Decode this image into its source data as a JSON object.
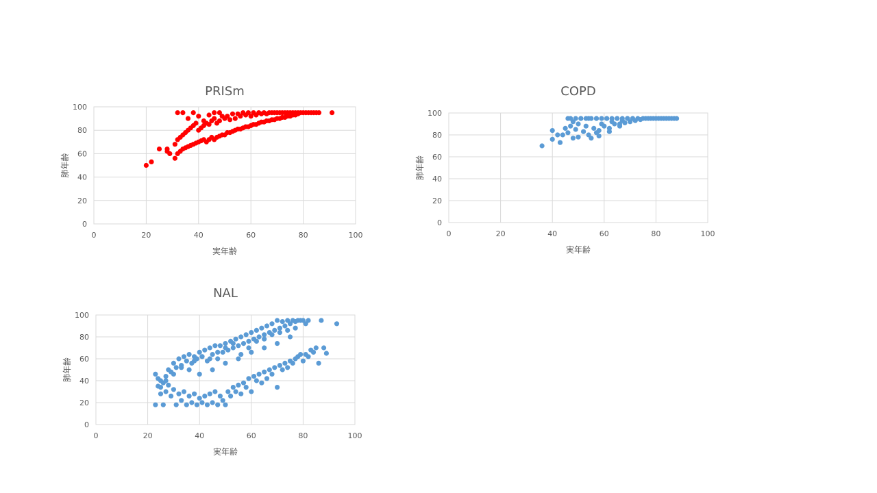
{
  "chart_data": [
    {
      "type": "scatter",
      "title": "PRISm",
      "xlabel": "実年齢",
      "ylabel": "肺年齢",
      "xlim": [
        0,
        100
      ],
      "ylim": [
        0,
        100
      ],
      "xticks": [
        0,
        20,
        40,
        60,
        80,
        100
      ],
      "yticks": [
        0,
        20,
        40,
        60,
        80,
        100
      ],
      "grid": true,
      "color": "#ff0000",
      "series": [
        {
          "x": [
            20,
            22,
            25,
            28,
            28,
            29,
            31,
            31,
            32,
            32,
            33,
            33,
            34,
            34,
            35,
            35,
            36,
            36,
            37,
            37,
            38,
            38,
            39,
            39,
            40,
            40,
            41,
            41,
            42,
            42,
            43,
            43,
            44,
            44,
            45,
            45,
            46,
            46,
            47,
            47,
            48,
            48,
            49,
            49,
            50,
            50,
            51,
            51,
            52,
            52,
            53,
            53,
            54,
            54,
            55,
            55,
            56,
            56,
            57,
            57,
            58,
            58,
            59,
            59,
            60,
            60,
            61,
            61,
            62,
            62,
            63,
            63,
            64,
            64,
            65,
            65,
            66,
            66,
            67,
            67,
            68,
            68,
            69,
            69,
            70,
            70,
            71,
            71,
            72,
            72,
            73,
            73,
            74,
            74,
            75,
            75,
            76,
            76,
            77,
            77,
            78,
            78,
            79,
            80,
            81,
            82,
            83,
            84,
            85,
            86,
            91,
            32,
            34,
            36,
            38,
            40,
            42,
            44,
            46,
            48
          ],
          "y": [
            50,
            53,
            64,
            62,
            64,
            60,
            56,
            68,
            60,
            72,
            62,
            74,
            64,
            76,
            65,
            78,
            66,
            80,
            67,
            82,
            68,
            84,
            69,
            86,
            70,
            80,
            71,
            82,
            72,
            84,
            70,
            86,
            72,
            85,
            74,
            88,
            72,
            90,
            74,
            86,
            75,
            88,
            76,
            92,
            76,
            90,
            78,
            92,
            78,
            89,
            79,
            94,
            80,
            90,
            81,
            94,
            81,
            92,
            82,
            95,
            83,
            93,
            83,
            95,
            84,
            92,
            85,
            95,
            85,
            93,
            86,
            95,
            87,
            94,
            87,
            95,
            88,
            94,
            88,
            95,
            89,
            95,
            89,
            95,
            90,
            95,
            90,
            95,
            91,
            95,
            91,
            95,
            92,
            95,
            92,
            95,
            93,
            95,
            93,
            95,
            94,
            95,
            95,
            95,
            95,
            95,
            95,
            95,
            95,
            95,
            95,
            95,
            95,
            90,
            95,
            92,
            88,
            93,
            95,
            95
          ]
        }
      ]
    },
    {
      "type": "scatter",
      "title": "COPD",
      "xlabel": "実年齢",
      "ylabel": "肺年齢",
      "xlim": [
        0,
        100
      ],
      "ylim": [
        0,
        100
      ],
      "xticks": [
        0,
        20,
        40,
        60,
        80,
        100
      ],
      "yticks": [
        0,
        20,
        40,
        60,
        80,
        100
      ],
      "grid": true,
      "color": "#5b9bd5",
      "series": [
        {
          "x": [
            36,
            40,
            40,
            42,
            43,
            44,
            45,
            46,
            46,
            47,
            48,
            48,
            49,
            50,
            50,
            51,
            52,
            53,
            54,
            54,
            55,
            56,
            57,
            57,
            58,
            59,
            60,
            61,
            62,
            63,
            64,
            65,
            66,
            67,
            68,
            69,
            70,
            71,
            72,
            73,
            74,
            75,
            76,
            77,
            78,
            79,
            80,
            81,
            82,
            83,
            84,
            85,
            86,
            87,
            88,
            47,
            49,
            51,
            53,
            55,
            57,
            59,
            61,
            63,
            65,
            67,
            69,
            71,
            58,
            62,
            66
          ],
          "y": [
            70,
            76,
            84,
            80,
            73,
            80,
            86,
            82,
            95,
            88,
            77,
            92,
            85,
            90,
            78,
            95,
            83,
            88,
            80,
            95,
            77,
            86,
            82,
            95,
            79,
            90,
            88,
            95,
            83,
            92,
            90,
            95,
            88,
            93,
            91,
            95,
            92,
            95,
            93,
            95,
            94,
            95,
            95,
            95,
            95,
            95,
            95,
            95,
            95,
            95,
            95,
            95,
            95,
            95,
            95,
            95,
            95,
            95,
            95,
            95,
            95,
            95,
            95,
            95,
            95,
            95,
            95,
            95,
            84,
            86,
            90
          ]
        }
      ]
    },
    {
      "type": "scatter",
      "title": "NAL",
      "xlabel": "実年齢",
      "ylabel": "肺年齢",
      "xlim": [
        0,
        100
      ],
      "ylim": [
        0,
        100
      ],
      "xticks": [
        0,
        20,
        40,
        60,
        80,
        100
      ],
      "yticks": [
        0,
        20,
        40,
        60,
        80,
        100
      ],
      "grid": true,
      "color": "#5b9bd5",
      "series": [
        {
          "x": [
            23,
            23,
            24,
            24,
            25,
            25,
            26,
            26,
            27,
            27,
            28,
            28,
            29,
            29,
            30,
            30,
            31,
            31,
            32,
            32,
            33,
            33,
            34,
            34,
            35,
            35,
            36,
            36,
            37,
            37,
            38,
            38,
            39,
            39,
            40,
            40,
            41,
            41,
            42,
            42,
            43,
            43,
            44,
            44,
            45,
            45,
            46,
            46,
            47,
            47,
            48,
            48,
            49,
            49,
            50,
            50,
            51,
            51,
            52,
            52,
            53,
            53,
            54,
            54,
            55,
            55,
            56,
            56,
            57,
            57,
            58,
            58,
            59,
            59,
            60,
            60,
            61,
            61,
            62,
            62,
            63,
            63,
            64,
            64,
            65,
            65,
            66,
            66,
            67,
            67,
            68,
            68,
            69,
            69,
            70,
            70,
            71,
            71,
            72,
            72,
            73,
            73,
            74,
            74,
            75,
            75,
            76,
            76,
            77,
            77,
            78,
            78,
            79,
            79,
            80,
            80,
            81,
            81,
            82,
            82,
            83,
            84,
            85,
            86,
            87,
            88,
            89,
            93,
            25,
            27,
            30,
            33,
            36,
            38,
            41,
            44,
            47,
            50,
            53,
            56,
            59,
            62,
            65,
            68,
            71,
            74,
            77,
            40,
            45,
            50,
            55,
            60,
            65,
            70,
            75
          ],
          "y": [
            18,
            46,
            35,
            42,
            28,
            40,
            18,
            38,
            30,
            44,
            36,
            50,
            26,
            48,
            32,
            56,
            18,
            52,
            28,
            60,
            22,
            54,
            30,
            62,
            18,
            58,
            26,
            64,
            20,
            56,
            28,
            62,
            18,
            60,
            24,
            66,
            20,
            62,
            26,
            68,
            18,
            58,
            28,
            70,
            20,
            64,
            30,
            72,
            18,
            60,
            26,
            72,
            22,
            66,
            18,
            74,
            30,
            68,
            26,
            76,
            34,
            70,
            30,
            78,
            36,
            72,
            28,
            80,
            38,
            74,
            34,
            82,
            42,
            76,
            30,
            84,
            44,
            78,
            40,
            86,
            46,
            80,
            38,
            88,
            48,
            82,
            42,
            90,
            50,
            84,
            46,
            92,
            52,
            86,
            34,
            95,
            54,
            88,
            50,
            94,
            56,
            90,
            52,
            95,
            58,
            92,
            56,
            95,
            60,
            94,
            62,
            95,
            64,
            95,
            58,
            95,
            64,
            92,
            62,
            95,
            68,
            66,
            70,
            56,
            95,
            70,
            65,
            92,
            34,
            40,
            46,
            52,
            50,
            58,
            62,
            60,
            66,
            70,
            74,
            64,
            70,
            76,
            78,
            82,
            84,
            86,
            88,
            46,
            50,
            56,
            60,
            66,
            70,
            74,
            80
          ]
        }
      ]
    }
  ]
}
